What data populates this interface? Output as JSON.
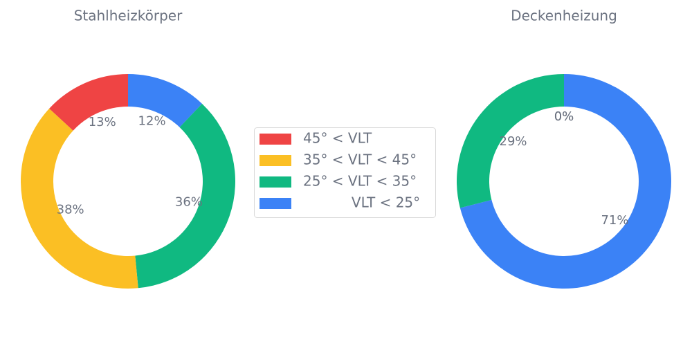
{
  "chart_data": [
    {
      "type": "pie",
      "title": "Stahlheizkörper",
      "categories": [
        "           VLT < 25°",
        "25° < VLT < 35°",
        "35° < VLT < 45°",
        "45° < VLT"
      ],
      "colors": [
        "#3b82f6",
        "#10b981",
        "#fbbf24",
        "#ef4444"
      ],
      "values": [
        12,
        36,
        38,
        13
      ],
      "value_labels": [
        "12%",
        "36%",
        "38%",
        "13%"
      ]
    },
    {
      "type": "pie",
      "title": "Deckenheizung",
      "values": [
        71,
        29,
        0,
        0
      ],
      "value_labels": [
        "71%",
        "29%",
        "0%",
        "0%"
      ]
    }
  ]
}
